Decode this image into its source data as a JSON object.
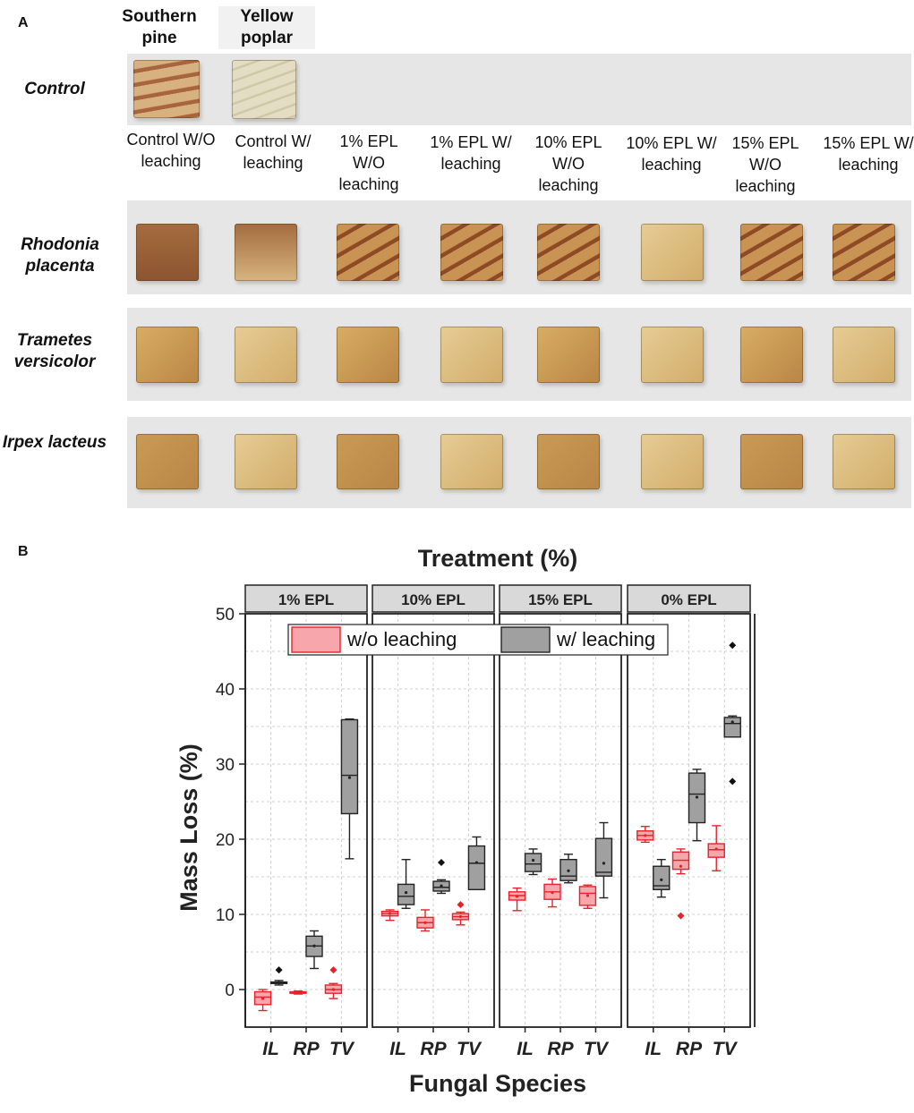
{
  "panel_a": {
    "letter": "A",
    "wood_species": {
      "southern_pine": "Southern pine",
      "yellow_poplar": "Yellow poplar"
    },
    "row_labels": {
      "control": "Control",
      "rhodonia": "Rhodonia placenta",
      "trametes": "Trametes versicolor",
      "irpex": "Irpex lacteus"
    },
    "treatments": [
      "Control W/O leaching",
      "Control W/ leaching",
      "1% EPL W/O leaching",
      "1% EPL W/ leaching",
      "10% EPL W/O leaching",
      "10% EPL W/ leaching",
      "15% EPL W/O leaching",
      "15% EPL W/ leaching"
    ],
    "colors": {
      "strip_bg": "#e6e6e6",
      "pine": "#d8b27e",
      "poplar": "#e2dcbf",
      "rp_block": "#c99453",
      "tv_block": "#d8ad63",
      "il_block": "#c99a55",
      "grain": "#8d4a25"
    }
  },
  "panel_b": {
    "letter": "B"
  },
  "chart_data": {
    "type": "box",
    "title": "Treatment (%)",
    "xlabel": "Fungal Species",
    "ylabel": "Mass Loss (%)",
    "ylim": [
      -5,
      50
    ],
    "yticks": [
      0,
      10,
      20,
      30,
      40,
      50
    ],
    "categories": [
      "IL",
      "RP",
      "TV"
    ],
    "facets": [
      "1% EPL",
      "10% EPL",
      "15% EPL",
      "0% EPL"
    ],
    "legend": [
      {
        "name": "w/o leaching",
        "color": "#f7a6ab",
        "edge": "#e8212b"
      },
      {
        "name": "w/ leaching",
        "color": "#a0a0a0",
        "edge": "#222222"
      }
    ],
    "legend_location": "top",
    "grid": true,
    "series": {
      "w/o leaching": {
        "1% EPL": [
          {
            "species": "IL",
            "whisker_low": -2.8,
            "q1": -2.0,
            "median": -1.0,
            "q3": -0.3,
            "whisker_high": 0.0,
            "mean": -1.2,
            "outliers": []
          },
          {
            "species": "RP",
            "whisker_low": -0.6,
            "q1": -0.5,
            "median": -0.4,
            "q3": -0.3,
            "whisker_high": -0.2,
            "mean": -0.4,
            "outliers": []
          },
          {
            "species": "TV",
            "whisker_low": -1.2,
            "q1": -0.5,
            "median": 0.0,
            "q3": 0.6,
            "whisker_high": 0.8,
            "mean": 0.0,
            "outliers": [
              2.6
            ]
          }
        ],
        "10% EPL": [
          {
            "species": "IL",
            "whisker_low": 9.2,
            "q1": 9.8,
            "median": 10.1,
            "q3": 10.4,
            "whisker_high": 10.6,
            "mean": 10.1,
            "outliers": []
          },
          {
            "species": "RP",
            "whisker_low": 7.8,
            "q1": 8.2,
            "median": 8.9,
            "q3": 9.6,
            "whisker_high": 10.6,
            "mean": 8.9,
            "outliers": []
          },
          {
            "species": "TV",
            "whisker_low": 8.6,
            "q1": 9.3,
            "median": 9.7,
            "q3": 10.1,
            "whisker_high": 10.3,
            "mean": 9.7,
            "outliers": [
              11.3
            ]
          }
        ],
        "15% EPL": [
          {
            "species": "IL",
            "whisker_low": 10.5,
            "q1": 11.9,
            "median": 12.5,
            "q3": 13.0,
            "whisker_high": 13.5,
            "mean": 12.4,
            "outliers": []
          },
          {
            "species": "RP",
            "whisker_low": 11.0,
            "q1": 12.0,
            "median": 13.0,
            "q3": 14.0,
            "whisker_high": 14.7,
            "mean": 12.9,
            "outliers": []
          },
          {
            "species": "TV",
            "whisker_low": 10.8,
            "q1": 11.2,
            "median": 12.8,
            "q3": 13.7,
            "whisker_high": 13.9,
            "mean": 12.5,
            "outliers": []
          }
        ],
        "0% EPL": [
          {
            "species": "IL",
            "whisker_low": 19.6,
            "q1": 19.9,
            "median": 20.5,
            "q3": 21.1,
            "whisker_high": 21.7,
            "mean": 20.5,
            "outliers": []
          },
          {
            "species": "RP",
            "whisker_low": 15.4,
            "q1": 16.0,
            "median": 17.2,
            "q3": 18.3,
            "whisker_high": 18.7,
            "mean": 16.4,
            "outliers": [
              9.8
            ]
          },
          {
            "species": "TV",
            "whisker_low": 15.8,
            "q1": 17.6,
            "median": 18.6,
            "q3": 19.4,
            "whisker_high": 21.8,
            "mean": 18.7,
            "outliers": []
          }
        ]
      },
      "w/ leaching": {
        "1% EPL": [
          {
            "species": "IL",
            "whisker_low": 0.6,
            "q1": 0.8,
            "median": 0.9,
            "q3": 1.0,
            "whisker_high": 1.2,
            "mean": 0.9,
            "outliers": [
              2.6
            ]
          },
          {
            "species": "RP",
            "whisker_low": 2.8,
            "q1": 4.4,
            "median": 5.8,
            "q3": 7.1,
            "whisker_high": 7.8,
            "mean": 5.8,
            "outliers": []
          },
          {
            "species": "TV",
            "whisker_low": 17.4,
            "q1": 23.4,
            "median": 28.5,
            "q3": 35.9,
            "whisker_high": 36.0,
            "mean": 28.2,
            "outliers": []
          }
        ],
        "10% EPL": [
          {
            "species": "IL",
            "whisker_low": 10.8,
            "q1": 11.3,
            "median": 12.4,
            "q3": 14.0,
            "whisker_high": 17.3,
            "mean": 12.9,
            "outliers": []
          },
          {
            "species": "RP",
            "whisker_low": 12.8,
            "q1": 13.1,
            "median": 13.6,
            "q3": 14.4,
            "whisker_high": 14.6,
            "mean": 13.8,
            "outliers": [
              16.9
            ]
          },
          {
            "species": "TV",
            "whisker_low": 13.3,
            "q1": 13.3,
            "median": 16.8,
            "q3": 19.1,
            "whisker_high": 20.3,
            "mean": 16.9,
            "outliers": []
          }
        ],
        "15% EPL": [
          {
            "species": "IL",
            "whisker_low": 15.3,
            "q1": 15.7,
            "median": 16.7,
            "q3": 18.1,
            "whisker_high": 18.7,
            "mean": 17.2,
            "outliers": []
          },
          {
            "species": "RP",
            "whisker_low": 14.2,
            "q1": 14.5,
            "median": 15.1,
            "q3": 17.3,
            "whisker_high": 18.0,
            "mean": 15.8,
            "outliers": []
          },
          {
            "species": "TV",
            "whisker_low": 12.2,
            "q1": 15.1,
            "median": 15.6,
            "q3": 20.1,
            "whisker_high": 22.2,
            "mean": 16.8,
            "outliers": []
          }
        ],
        "0% EPL": [
          {
            "species": "IL",
            "whisker_low": 12.3,
            "q1": 13.3,
            "median": 13.8,
            "q3": 16.4,
            "whisker_high": 17.3,
            "mean": 14.6,
            "outliers": []
          },
          {
            "species": "RP",
            "whisker_low": 19.8,
            "q1": 22.2,
            "median": 26.0,
            "q3": 28.8,
            "whisker_high": 29.3,
            "mean": 25.6,
            "outliers": []
          },
          {
            "species": "TV",
            "whisker_low": 33.6,
            "q1": 33.6,
            "median": 35.4,
            "q3": 36.2,
            "whisker_high": 36.4,
            "mean": 35.6,
            "outliers": [
              45.8,
              27.7
            ]
          }
        ]
      }
    }
  }
}
